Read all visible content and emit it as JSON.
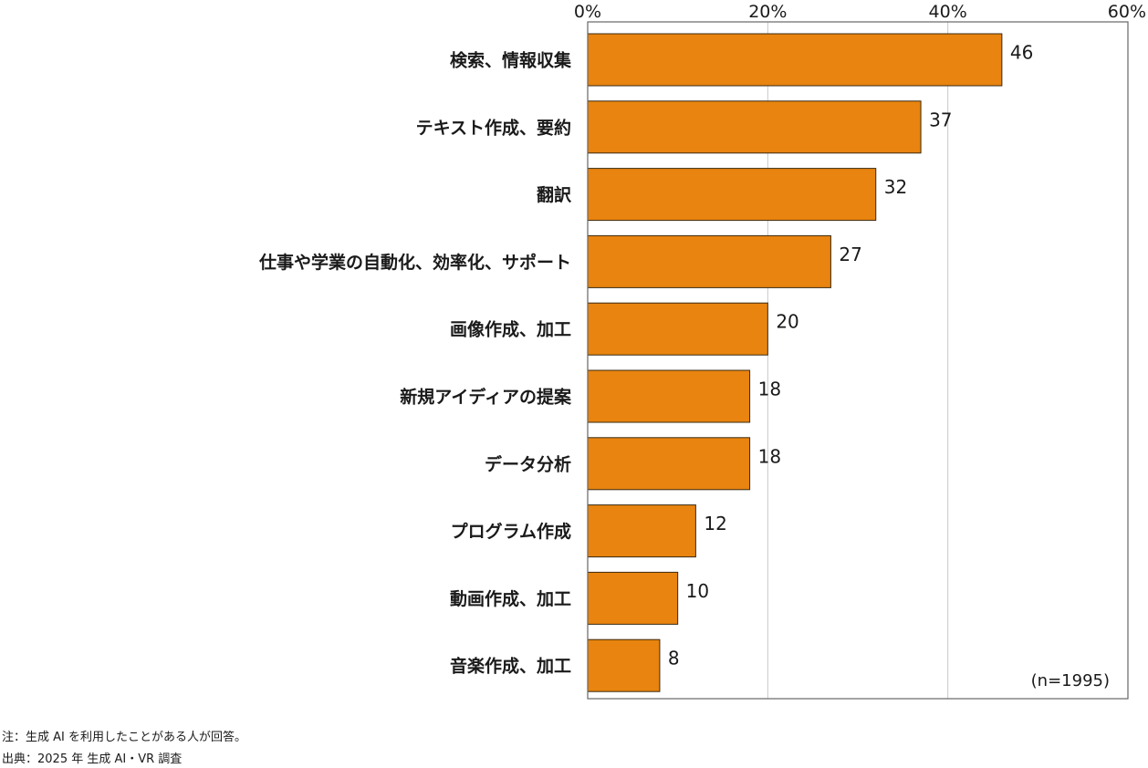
{
  "chart_data": {
    "type": "bar",
    "orientation": "horizontal",
    "categories": [
      "検索、情報収集",
      "テキスト作成、要約",
      "翻訳",
      "仕事や学業の自動化、効率化、サポート",
      "画像作成、加工",
      "新規アイディアの提案",
      "データ分析",
      "プログラム作成",
      "動画作成、加工",
      "音楽作成、加工"
    ],
    "values": [
      46,
      37,
      32,
      27,
      20,
      18,
      18,
      12,
      10,
      8
    ],
    "xlim": [
      0,
      60
    ],
    "x_ticks": [
      0,
      20,
      40,
      60
    ],
    "x_tick_labels": [
      "0%",
      "20%",
      "40%",
      "60%"
    ],
    "x_axis_position": "top",
    "grid": "vertical",
    "bar_color": "#e8840f",
    "sample_size": "(n=1995)"
  },
  "notes": {
    "note": "注：生成 AI を利用したことがある人が回答。",
    "source": "出典：2025 年 生成 AI・VR 調査"
  }
}
